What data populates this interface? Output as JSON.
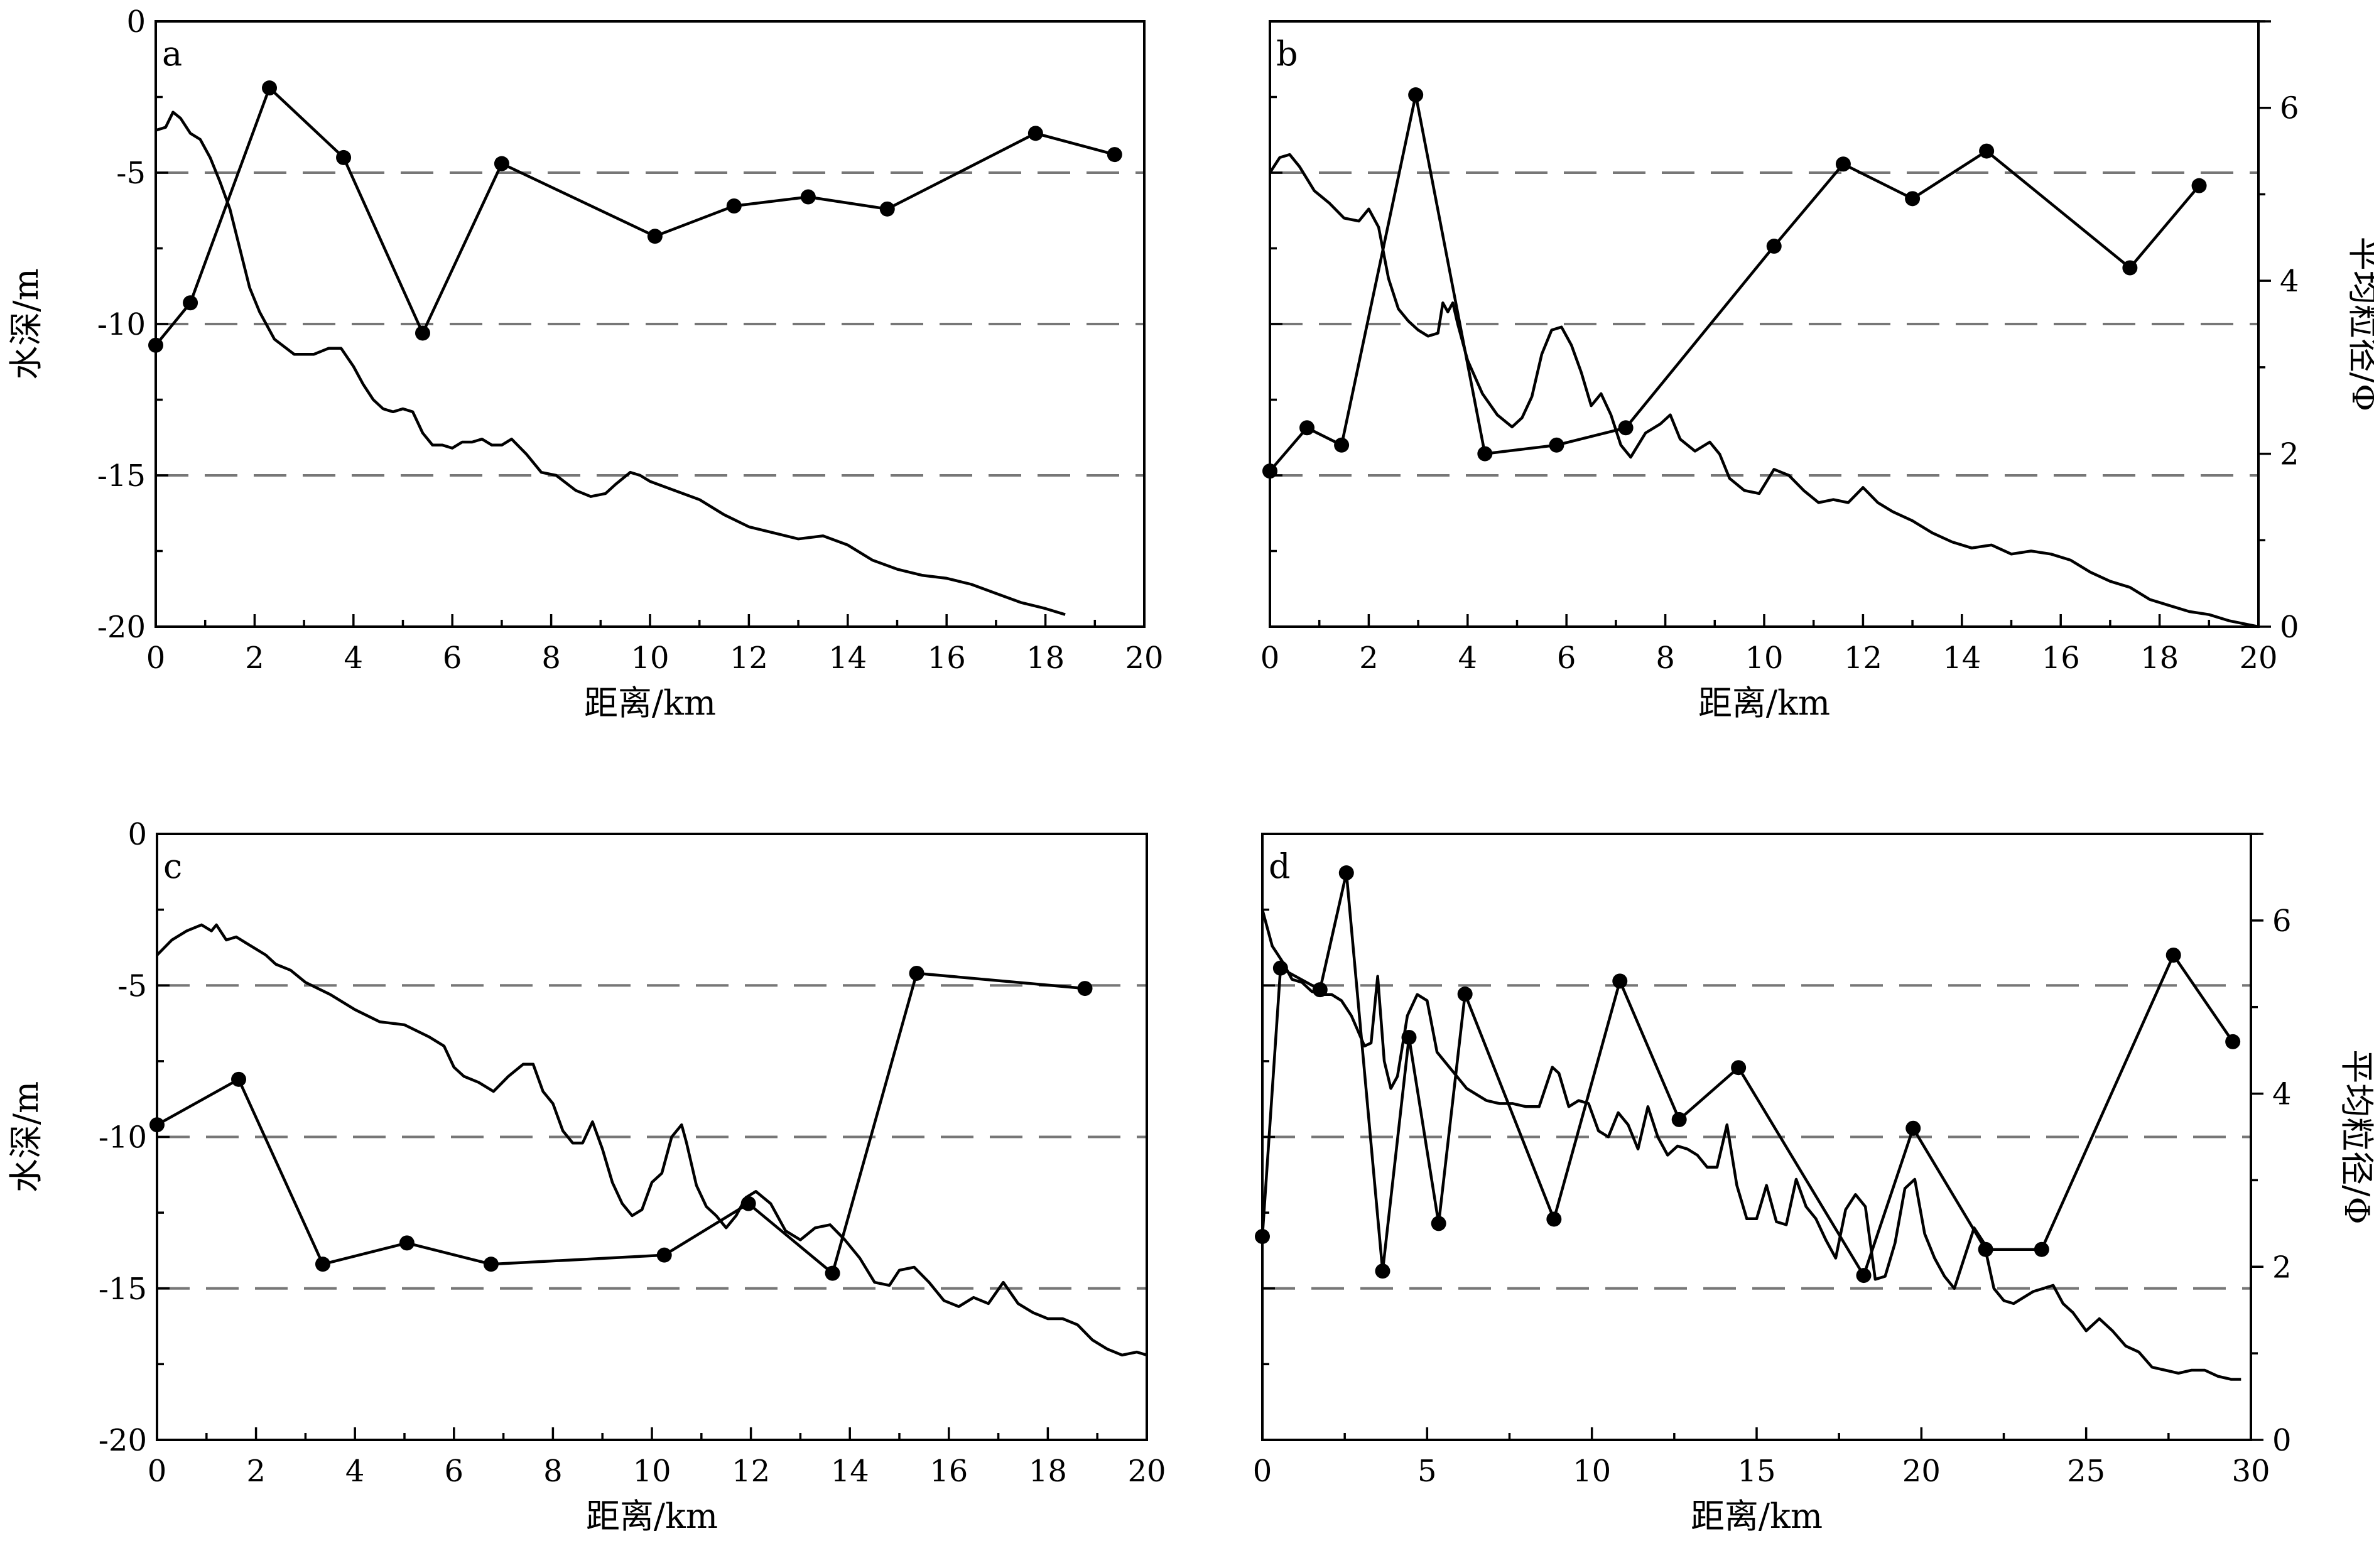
{
  "chart_data": [
    {
      "panel": "a",
      "type": "line",
      "xlabel": "距离/km",
      "ylabel": "水深/m",
      "xlim": [
        0,
        20
      ],
      "xticks": [
        "0",
        "2",
        "4",
        "6",
        "8",
        "10",
        "12",
        "14",
        "16",
        "18",
        "20"
      ],
      "ylim": [
        -20,
        0
      ],
      "yticks": [
        "-20",
        "-15",
        "-10",
        "-5",
        "0"
      ],
      "reference_lines": [
        -5,
        -10,
        -15
      ],
      "depth_profile": {
        "x": [
          0,
          0.2,
          0.35,
          0.5,
          0.7,
          0.9,
          1.1,
          1.3,
          1.5,
          1.7,
          1.9,
          2.1,
          2.4,
          2.8,
          3.2,
          3.5,
          3.75,
          4.0,
          4.2,
          4.4,
          4.6,
          4.8,
          5.0,
          5.2,
          5.4,
          5.6,
          5.8,
          6.0,
          6.2,
          6.4,
          6.6,
          6.8,
          7.0,
          7.2,
          7.5,
          7.8,
          8.1,
          8.5,
          8.8,
          9.1,
          9.3,
          9.6,
          9.8,
          10.0,
          10.5,
          11.0,
          11.5,
          12.0,
          12.5,
          13.0,
          13.5,
          14.0,
          14.5,
          15.0,
          15.5,
          16.0,
          16.5,
          17.0,
          17.5,
          18.0,
          18.4
        ],
        "y": [
          -3.6,
          -3.5,
          -3.0,
          -3.2,
          -3.7,
          -3.9,
          -4.5,
          -5.3,
          -6.2,
          -7.5,
          -8.8,
          -9.6,
          -10.5,
          -11.0,
          -11.0,
          -10.8,
          -10.8,
          -11.4,
          -12.0,
          -12.5,
          -12.8,
          -12.9,
          -12.8,
          -12.9,
          -13.6,
          -14.0,
          -14.0,
          -14.1,
          -13.9,
          -13.9,
          -13.8,
          -14.0,
          -14.0,
          -13.8,
          -14.3,
          -14.9,
          -15.0,
          -15.5,
          -15.7,
          -15.6,
          -15.3,
          -14.9,
          -15.0,
          -15.2,
          -15.5,
          -15.8,
          -16.3,
          -16.7,
          -16.9,
          -17.1,
          -17.0,
          -17.3,
          -17.8,
          -18.1,
          -18.3,
          -18.4,
          -18.6,
          -18.9,
          -19.2,
          -19.4,
          -19.6
        ]
      },
      "grain_size": {
        "x": [
          0,
          0.7,
          2.3,
          3.8,
          5.4,
          7.0,
          10.1,
          11.7,
          13.2,
          14.8,
          17.8,
          19.4
        ],
        "y": [
          -10.7,
          -9.3,
          -2.2,
          -4.5,
          -10.3,
          -4.7,
          -7.1,
          -6.1,
          -5.8,
          -6.2,
          -3.7,
          -4.4
        ]
      }
    },
    {
      "panel": "b",
      "type": "line",
      "xlabel": "距离/km",
      "y2label": "平均粒径/Φ",
      "xlim": [
        0,
        20
      ],
      "xticks": [
        "0",
        "2",
        "4",
        "6",
        "8",
        "10",
        "12",
        "14",
        "16",
        "18",
        "20"
      ],
      "ylim": [
        -20,
        0
      ],
      "y2lim": [
        0,
        7
      ],
      "y2ticks": [
        "0",
        "2",
        "4",
        "6"
      ],
      "reference_lines": [
        -5,
        -10,
        -15
      ],
      "depth_profile": {
        "x": [
          0,
          0.2,
          0.4,
          0.6,
          0.9,
          1.2,
          1.5,
          1.8,
          2.0,
          2.2,
          2.4,
          2.6,
          2.8,
          3.0,
          3.2,
          3.4,
          3.5,
          3.6,
          3.7,
          3.8,
          4.0,
          4.3,
          4.6,
          4.9,
          5.1,
          5.3,
          5.5,
          5.7,
          5.9,
          6.1,
          6.3,
          6.5,
          6.7,
          6.9,
          7.1,
          7.3,
          7.6,
          7.9,
          8.1,
          8.3,
          8.6,
          8.9,
          9.1,
          9.3,
          9.6,
          9.9,
          10.2,
          10.5,
          10.8,
          11.1,
          11.4,
          11.7,
          12.0,
          12.3,
          12.6,
          13.0,
          13.4,
          13.8,
          14.2,
          14.6,
          15.0,
          15.4,
          15.8,
          16.2,
          16.6,
          17.0,
          17.4,
          17.8,
          18.2,
          18.6,
          19.0,
          19.4,
          19.7,
          20.0
        ],
        "y": [
          -5.0,
          -4.5,
          -4.4,
          -4.8,
          -5.6,
          -6.0,
          -6.5,
          -6.6,
          -6.2,
          -6.8,
          -8.5,
          -9.5,
          -9.9,
          -10.2,
          -10.4,
          -10.3,
          -9.3,
          -9.6,
          -9.3,
          -10.0,
          -11.2,
          -12.3,
          -13.0,
          -13.4,
          -13.1,
          -12.4,
          -11.0,
          -10.2,
          -10.1,
          -10.7,
          -11.6,
          -12.7,
          -12.3,
          -13.0,
          -14.0,
          -14.4,
          -13.6,
          -13.3,
          -13.0,
          -13.8,
          -14.2,
          -13.9,
          -14.3,
          -15.1,
          -15.5,
          -15.6,
          -14.8,
          -15.0,
          -15.5,
          -15.9,
          -15.8,
          -15.9,
          -15.4,
          -15.9,
          -16.2,
          -16.5,
          -16.9,
          -17.2,
          -17.4,
          -17.3,
          -17.6,
          -17.5,
          -17.6,
          -17.8,
          -18.2,
          -18.5,
          -18.7,
          -19.1,
          -19.3,
          -19.5,
          -19.6,
          -19.8,
          -19.9,
          -20.0
        ]
      },
      "grain_size": {
        "x": [
          0,
          0.75,
          1.45,
          2.95,
          4.35,
          5.8,
          7.2,
          10.2,
          11.6,
          13.0,
          14.5,
          17.4,
          18.8
        ],
        "y": [
          1.8,
          2.3,
          2.1,
          6.15,
          2.0,
          2.1,
          2.3,
          4.4,
          5.35,
          4.95,
          5.5,
          4.15,
          5.1
        ]
      }
    },
    {
      "panel": "c",
      "type": "line",
      "xlabel": "距离/km",
      "ylabel": "水深/m",
      "xlim": [
        0,
        20
      ],
      "xticks": [
        "0",
        "2",
        "4",
        "6",
        "8",
        "10",
        "12",
        "14",
        "16",
        "18",
        "20"
      ],
      "ylim": [
        -20,
        0
      ],
      "yticks": [
        "-20",
        "-15",
        "-10",
        "-5",
        "0"
      ],
      "reference_lines": [
        -5,
        -10,
        -15
      ],
      "depth_profile": {
        "x": [
          0,
          0.3,
          0.6,
          0.9,
          1.1,
          1.2,
          1.4,
          1.6,
          1.8,
          2.0,
          2.2,
          2.4,
          2.7,
          3.0,
          3.5,
          4.0,
          4.5,
          5.0,
          5.5,
          5.8,
          6.0,
          6.2,
          6.5,
          6.8,
          7.1,
          7.4,
          7.6,
          7.8,
          8.0,
          8.2,
          8.4,
          8.6,
          8.8,
          9.0,
          9.2,
          9.4,
          9.6,
          9.8,
          10.0,
          10.2,
          10.4,
          10.6,
          10.7,
          10.9,
          11.1,
          11.3,
          11.5,
          11.7,
          11.9,
          12.1,
          12.4,
          12.7,
          13.0,
          13.3,
          13.6,
          13.9,
          14.2,
          14.5,
          14.8,
          15.0,
          15.3,
          15.6,
          15.9,
          16.2,
          16.5,
          16.8,
          17.1,
          17.4,
          17.7,
          18.0,
          18.3,
          18.6,
          18.9,
          19.2,
          19.5,
          19.8,
          20.0
        ],
        "y": [
          -4.0,
          -3.5,
          -3.2,
          -3.0,
          -3.2,
          -3.0,
          -3.5,
          -3.4,
          -3.6,
          -3.8,
          -4.0,
          -4.3,
          -4.5,
          -4.9,
          -5.3,
          -5.8,
          -6.2,
          -6.3,
          -6.7,
          -7.0,
          -7.7,
          -8.0,
          -8.2,
          -8.5,
          -8.0,
          -7.6,
          -7.6,
          -8.5,
          -8.9,
          -9.8,
          -10.2,
          -10.2,
          -9.5,
          -10.4,
          -11.5,
          -12.2,
          -12.6,
          -12.4,
          -11.5,
          -11.2,
          -10.0,
          -9.6,
          -10.2,
          -11.6,
          -12.3,
          -12.6,
          -13.0,
          -12.6,
          -12.0,
          -11.8,
          -12.2,
          -13.1,
          -13.4,
          -13.0,
          -12.9,
          -13.4,
          -14.0,
          -14.8,
          -14.9,
          -14.4,
          -14.3,
          -14.8,
          -15.4,
          -15.6,
          -15.3,
          -15.5,
          -14.8,
          -15.5,
          -15.8,
          -16.0,
          -16.0,
          -16.2,
          -16.7,
          -17.0,
          -17.2,
          -17.1,
          -17.2
        ]
      },
      "grain_size": {
        "x": [
          0,
          1.65,
          3.35,
          5.05,
          6.75,
          10.25,
          11.95,
          13.65,
          15.35,
          18.75
        ],
        "y": [
          -9.6,
          -8.1,
          -14.2,
          -13.5,
          -14.2,
          -13.9,
          -12.2,
          -14.5,
          -4.6,
          -5.1
        ]
      }
    },
    {
      "panel": "d",
      "type": "line",
      "xlabel": "距离/km",
      "y2label": "平均粒径/Φ",
      "xlim": [
        0,
        30
      ],
      "xticks": [
        "0",
        "5",
        "10",
        "15",
        "20",
        "25",
        "30"
      ],
      "ylim": [
        -20,
        0
      ],
      "y2lim": [
        0,
        7
      ],
      "y2ticks": [
        "0",
        "2",
        "4",
        "6"
      ],
      "reference_lines": [
        -5,
        -10,
        -15
      ],
      "depth_profile": {
        "x": [
          0,
          0.3,
          0.6,
          0.9,
          1.2,
          1.5,
          1.8,
          2.1,
          2.4,
          2.7,
          2.9,
          3.1,
          3.3,
          3.5,
          3.7,
          3.9,
          4.1,
          4.4,
          4.7,
          5.0,
          5.3,
          5.6,
          5.9,
          6.2,
          6.5,
          6.8,
          7.2,
          7.6,
          8.0,
          8.4,
          8.8,
          9.0,
          9.3,
          9.6,
          9.9,
          10.2,
          10.5,
          10.8,
          11.1,
          11.4,
          11.7,
          12.0,
          12.3,
          12.6,
          12.9,
          13.2,
          13.5,
          13.8,
          14.1,
          14.4,
          14.7,
          15.0,
          15.3,
          15.6,
          15.9,
          16.2,
          16.5,
          16.8,
          17.1,
          17.4,
          17.7,
          18.0,
          18.3,
          18.6,
          18.9,
          19.2,
          19.5,
          19.8,
          20.1,
          20.4,
          20.7,
          21.0,
          21.3,
          21.6,
          21.9,
          22.2,
          22.5,
          22.8,
          23.1,
          23.4,
          23.7,
          24.0,
          24.3,
          24.6,
          25.0,
          25.4,
          25.8,
          26.2,
          26.6,
          27.0,
          27.4,
          27.8,
          28.2,
          28.6,
          29.0,
          29.4,
          29.7
        ],
        "y": [
          -2.5,
          -3.7,
          -4.2,
          -4.8,
          -4.9,
          -5.2,
          -5.3,
          -5.3,
          -5.5,
          -6.0,
          -6.5,
          -7.0,
          -6.9,
          -4.7,
          -7.5,
          -8.4,
          -8.0,
          -6.0,
          -5.3,
          -5.5,
          -7.2,
          -7.6,
          -8.0,
          -8.4,
          -8.6,
          -8.8,
          -8.9,
          -8.9,
          -9.0,
          -9.0,
          -7.7,
          -7.9,
          -9.0,
          -8.8,
          -8.9,
          -9.8,
          -10.0,
          -9.2,
          -9.6,
          -10.4,
          -9.0,
          -10.0,
          -10.6,
          -10.3,
          -10.4,
          -10.6,
          -11.0,
          -11.0,
          -9.6,
          -11.6,
          -12.7,
          -12.7,
          -11.6,
          -12.8,
          -12.9,
          -11.4,
          -12.3,
          -12.7,
          -13.4,
          -14.0,
          -12.4,
          -11.9,
          -12.3,
          -14.7,
          -14.6,
          -13.5,
          -11.7,
          -11.4,
          -13.2,
          -14.0,
          -14.6,
          -15.0,
          -14.0,
          -13.0,
          -13.5,
          -15.0,
          -15.4,
          -15.5,
          -15.3,
          -15.1,
          -15.0,
          -14.9,
          -15.5,
          -15.8,
          -16.4,
          -16.0,
          -16.4,
          -16.9,
          -17.1,
          -17.6,
          -17.7,
          -17.8,
          -17.7,
          -17.7,
          -17.9,
          -18.0,
          -18.0
        ]
      },
      "grain_size": {
        "x": [
          0,
          0.55,
          1.75,
          2.55,
          3.65,
          4.45,
          5.35,
          6.15,
          8.85,
          10.85,
          12.65,
          14.45,
          18.25,
          19.75,
          21.95,
          23.65,
          27.65,
          29.45
        ],
        "y": [
          2.35,
          5.45,
          5.2,
          6.55,
          1.95,
          4.65,
          2.5,
          5.15,
          2.55,
          5.3,
          3.7,
          4.3,
          1.9,
          3.6,
          2.2,
          2.2,
          5.6,
          4.6
        ]
      }
    }
  ]
}
